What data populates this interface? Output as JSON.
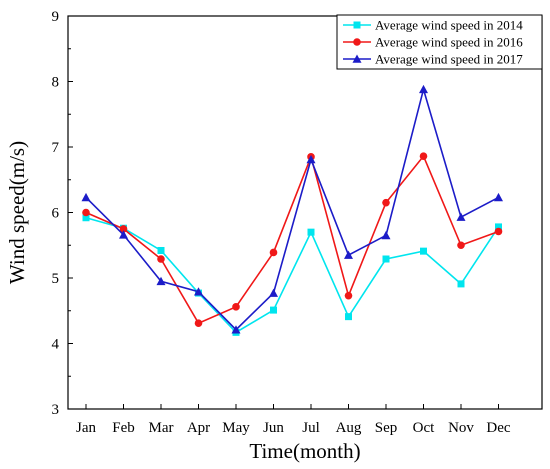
{
  "chart_data": {
    "type": "line",
    "title": "",
    "xlabel": "Time(month)",
    "ylabel": "Wind speed(m/s)",
    "ylim": [
      3,
      9
    ],
    "yticks": [
      3,
      4,
      5,
      6,
      7,
      8,
      9
    ],
    "grid": false,
    "legend_position": "top-right",
    "categories": [
      "Jan",
      "Feb",
      "Mar",
      "Apr",
      "May",
      "Jun",
      "Jul",
      "Aug",
      "Sep",
      "Oct",
      "Nov",
      "Dec"
    ],
    "series": [
      {
        "name": "Average wind speed in 2014",
        "color": "#00e5ee",
        "marker": "square",
        "values": [
          5.92,
          5.76,
          5.42,
          4.77,
          4.17,
          4.51,
          5.7,
          4.41,
          5.29,
          5.41,
          4.91,
          5.78
        ]
      },
      {
        "name": "Average wind speed in 2016",
        "color": "#f01818",
        "marker": "circle",
        "values": [
          6.0,
          5.75,
          5.29,
          4.31,
          4.56,
          5.39,
          6.85,
          4.73,
          6.15,
          6.86,
          5.5,
          5.71
        ]
      },
      {
        "name": "Average wind speed in 2017",
        "color": "#1c1cc8",
        "marker": "triangle",
        "values": [
          6.23,
          5.66,
          4.95,
          4.79,
          4.21,
          4.77,
          6.81,
          5.35,
          5.65,
          7.88,
          5.93,
          6.23
        ]
      }
    ]
  }
}
